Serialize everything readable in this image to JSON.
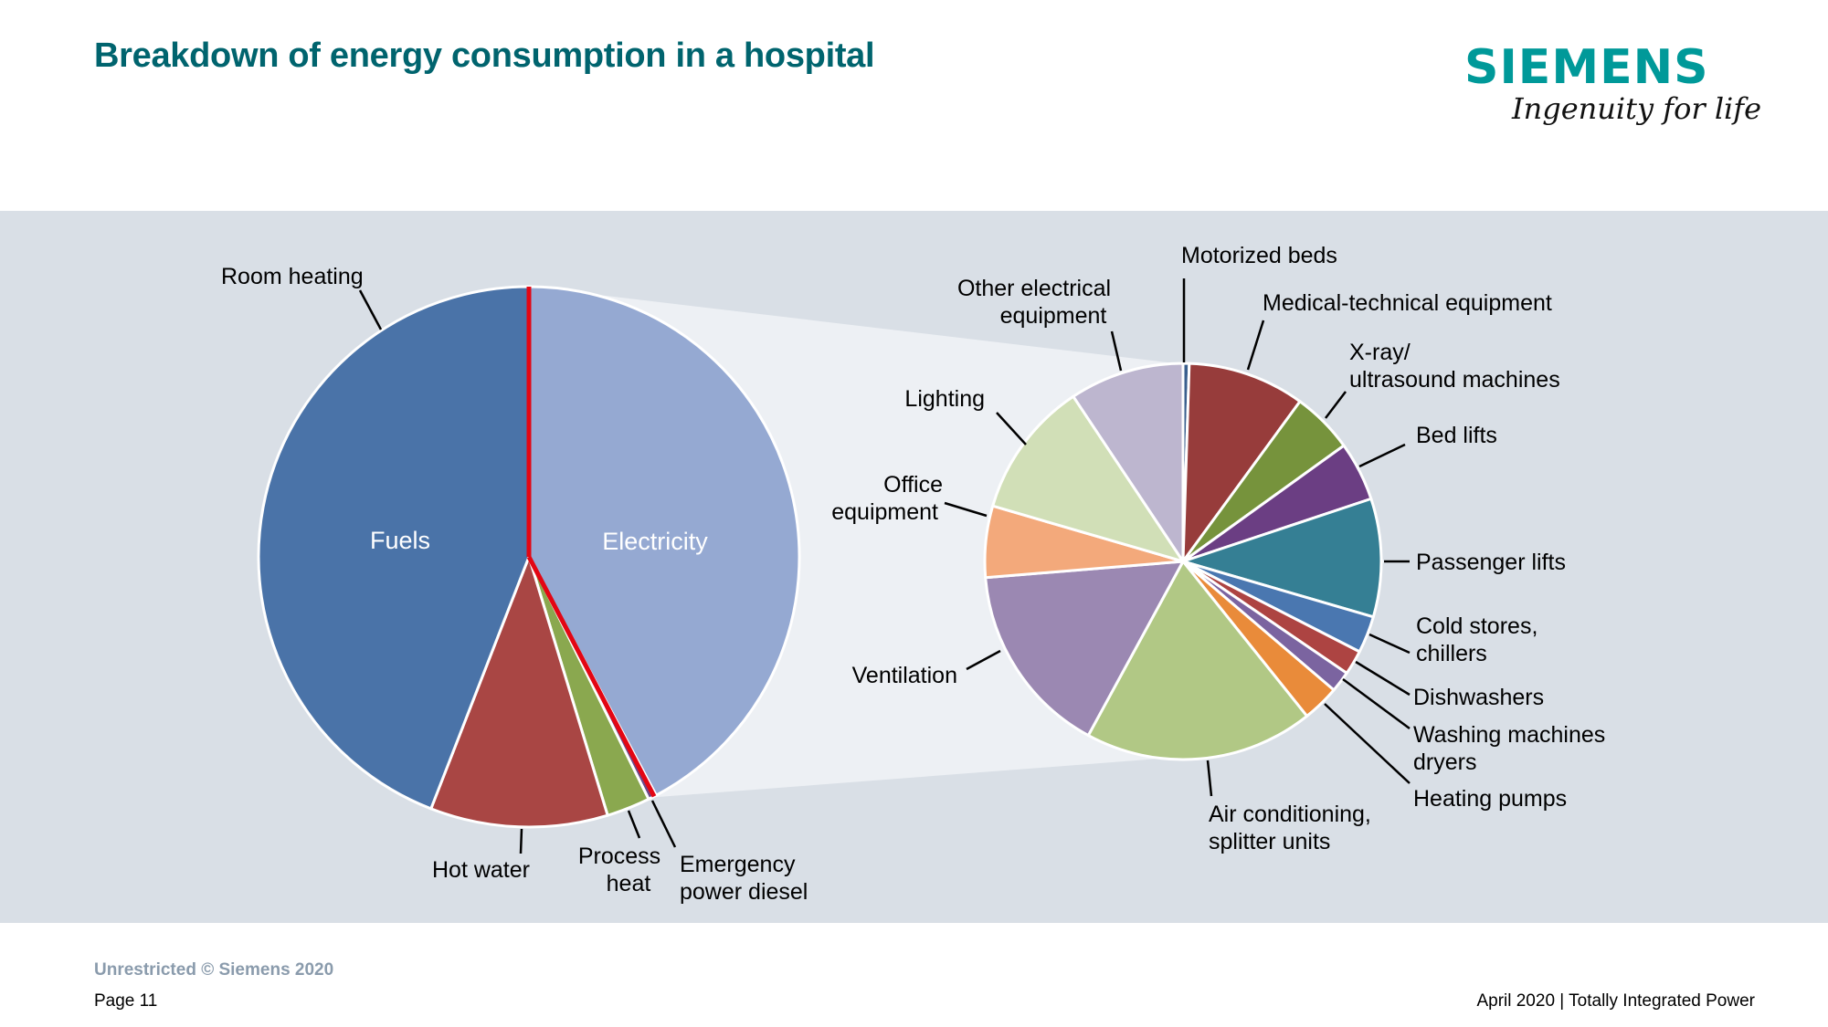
{
  "header": {
    "title": "Breakdown of energy consumption in a hospital",
    "logo_word": "SIEMENS",
    "logo_tagline": "Ingenuity for life"
  },
  "footer": {
    "copyright": "Unrestricted © Siemens 2020",
    "page": "Page 11",
    "right": "April 2020 | Totally Integrated Power"
  },
  "chart_data": [
    {
      "type": "pie",
      "title": "Overall hospital energy consumption",
      "start": "12 o'clock, clockwise",
      "slices": [
        {
          "label": "Electricity",
          "value": 42.2,
          "color": "#95a9d2",
          "inner_label": "Electricity"
        },
        {
          "label": "Emergency power diesel",
          "value": 0.5,
          "color": "#6b4a8a"
        },
        {
          "label": "Process heat",
          "value": 2.6,
          "color": "#8aa84f"
        },
        {
          "label": "Hot water",
          "value": 10.6,
          "color": "#a94644"
        },
        {
          "label": "Room heating",
          "value": 44.1,
          "color": "#4a73a8",
          "inner_label": "Fuels"
        }
      ],
      "highlight_outline_color": "#e30613",
      "highlight_slice": "Electricity",
      "units": "percent (estimated)"
    },
    {
      "type": "pie",
      "title": "Electricity breakdown",
      "start": "12 o'clock, clockwise",
      "slices": [
        {
          "label": "Motorized beds",
          "value": 0.5,
          "color": "#3a5f8e"
        },
        {
          "label": "Medical-technical equipment",
          "value": 9.5,
          "color": "#973c3b"
        },
        {
          "label": "X-ray/ ultrasound machines",
          "value": 5.0,
          "color": "#76933c"
        },
        {
          "label": "Bed lifts",
          "value": 4.8,
          "color": "#6b3e83"
        },
        {
          "label": "Passenger lifts",
          "value": 9.6,
          "color": "#357f94"
        },
        {
          "label": "Cold stores, chillers",
          "value": 3.0,
          "color": "#4a77b0"
        },
        {
          "label": "Dishwashers",
          "value": 2.0,
          "color": "#ad4442"
        },
        {
          "label": "Washing machines dryers",
          "value": 1.7,
          "color": "#7b64a0"
        },
        {
          "label": "Heating pumps",
          "value": 3.0,
          "color": "#e98b3a"
        },
        {
          "label": "Air conditioning, splitter units",
          "value": 18.6,
          "color": "#b1c885"
        },
        {
          "label": "Ventilation",
          "value": 15.7,
          "color": "#9b88b2"
        },
        {
          "label": "Office equipment",
          "value": 5.8,
          "color": "#f3a97b"
        },
        {
          "label": "Lighting",
          "value": 11.1,
          "color": "#d1dfb7"
        },
        {
          "label": "Other electrical equipment",
          "value": 9.3,
          "color": "#bdb6cf"
        }
      ],
      "units": "percent (estimated)"
    }
  ]
}
